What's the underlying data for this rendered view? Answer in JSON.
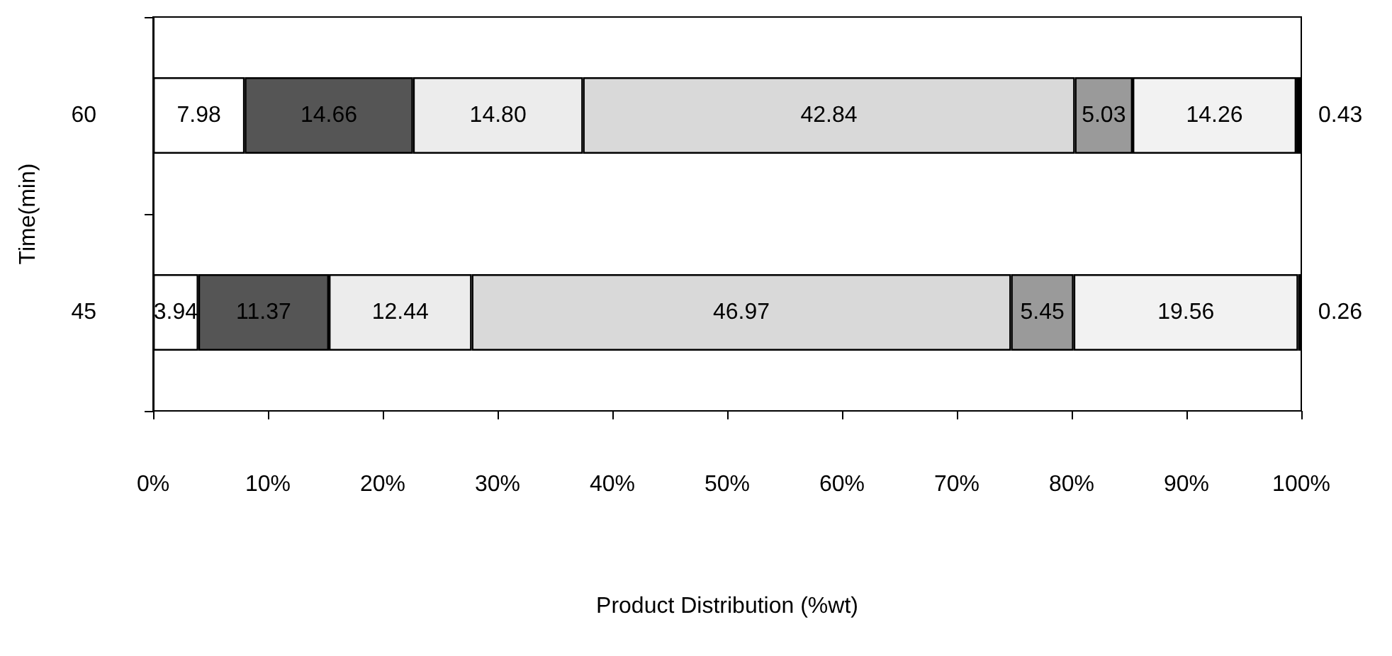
{
  "chart_data": {
    "type": "bar",
    "orientation": "horizontal",
    "stacked": true,
    "xlabel": "Product Distribution (%wt)",
    "ylabel": "Time(min)",
    "categories": [
      "60",
      "45"
    ],
    "xlim": [
      0,
      100
    ],
    "xticks": [
      {
        "value": 0,
        "label": "0%"
      },
      {
        "value": 10,
        "label": "10%"
      },
      {
        "value": 20,
        "label": "20%"
      },
      {
        "value": 30,
        "label": "30%"
      },
      {
        "value": 40,
        "label": "40%"
      },
      {
        "value": 50,
        "label": "50%"
      },
      {
        "value": 60,
        "label": "60%"
      },
      {
        "value": 70,
        "label": "70%"
      },
      {
        "value": 80,
        "label": "80%"
      },
      {
        "value": 90,
        "label": "90%"
      },
      {
        "value": 100,
        "label": "100%"
      }
    ],
    "grid": false,
    "series": [
      {
        "color": "#ffffff",
        "values": [
          7.98,
          3.94
        ],
        "value_labels": [
          "7.98",
          "3.94"
        ]
      },
      {
        "color": "#555555",
        "values": [
          14.66,
          11.37
        ],
        "value_labels": [
          "14.66",
          "11.37"
        ]
      },
      {
        "color": "#ececec",
        "values": [
          14.8,
          12.44
        ],
        "value_labels": [
          "14.80",
          "12.44"
        ]
      },
      {
        "color": "#d9d9d9",
        "values": [
          42.84,
          46.97
        ],
        "value_labels": [
          "42.84",
          "46.97"
        ]
      },
      {
        "color": "#9a9a9a",
        "values": [
          5.03,
          5.45
        ],
        "value_labels": [
          "5.03",
          "5.45"
        ]
      },
      {
        "color": "#f2f2f2",
        "values": [
          14.26,
          19.56
        ],
        "value_labels": [
          "14.26",
          "19.56"
        ]
      },
      {
        "color": "#000000",
        "values": [
          0.43,
          0.26
        ],
        "value_labels": [
          "0.43",
          "0.26"
        ]
      }
    ]
  }
}
